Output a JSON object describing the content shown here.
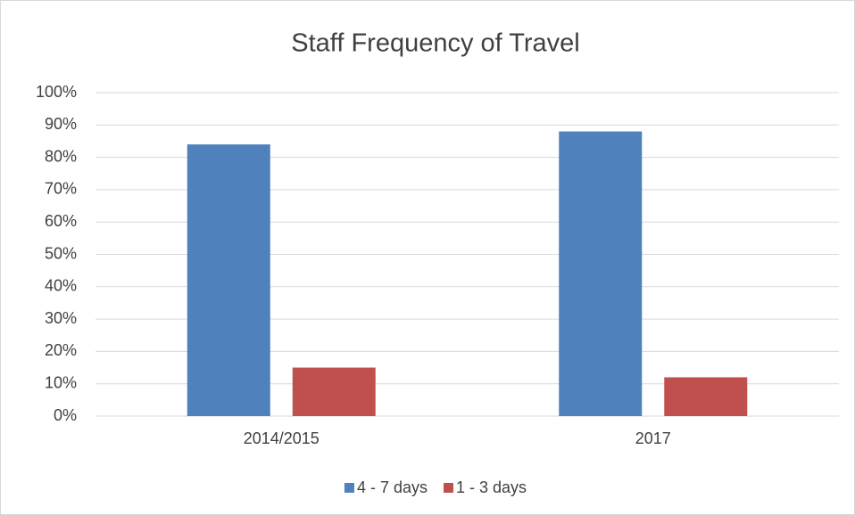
{
  "chart_data": {
    "type": "bar",
    "title": "Staff Frequency of Travel",
    "categories": [
      "2014/2015",
      "2017"
    ],
    "series": [
      {
        "name": "4 - 7 days",
        "color": "#4f81bd",
        "values": [
          84,
          88
        ]
      },
      {
        "name": "1 - 3 days",
        "color": "#c0504d",
        "values": [
          15,
          12
        ]
      }
    ],
    "ylim": [
      0,
      100
    ],
    "yticks": [
      {
        "value": 0,
        "label": "0%"
      },
      {
        "value": 10,
        "label": "10%"
      },
      {
        "value": 20,
        "label": "20%"
      },
      {
        "value": 30,
        "label": "30%"
      },
      {
        "value": 40,
        "label": "40%"
      },
      {
        "value": 50,
        "label": "50%"
      },
      {
        "value": 60,
        "label": "60%"
      },
      {
        "value": 70,
        "label": "70%"
      },
      {
        "value": 80,
        "label": "80%"
      },
      {
        "value": 90,
        "label": "90%"
      },
      {
        "value": 100,
        "label": "100%"
      }
    ],
    "grid": true,
    "legend": "bottom"
  }
}
